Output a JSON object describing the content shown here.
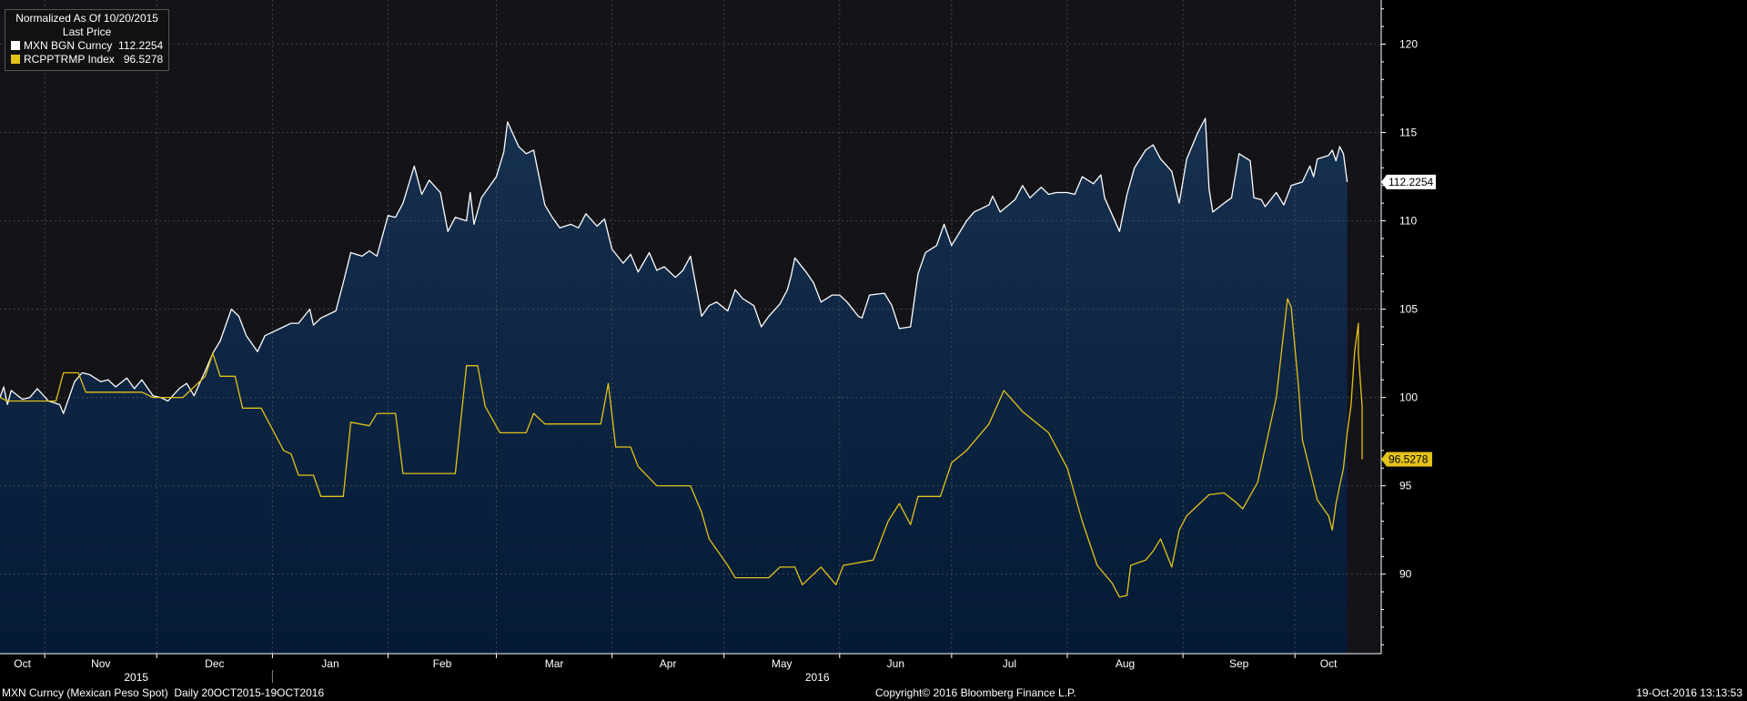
{
  "legend": {
    "header1": "Normalized As Of 10/20/2015",
    "header2": "Last Price",
    "items": [
      {
        "name": "MXN BGN Curncy",
        "value": "112.2254",
        "color": "#ffffff"
      },
      {
        "name": "RCPPTRMP Index",
        "value": "96.5278",
        "color": "#e3c21a"
      }
    ]
  },
  "footer": {
    "left": "MXN Curncy (Mexican Peso Spot)  Daily 20OCT2015-19OCT2016",
    "center": "Copyright© 2016 Bloomberg Finance L.P.",
    "right": "19-Oct-2016 13:13:53"
  },
  "colors": {
    "background": "#000000",
    "plot_top": "#141318",
    "area_top": "#16304f",
    "area_bottom": "#041a35",
    "mxn_line": "#ffffff",
    "rcpp_line": "#e3c21a",
    "grid": "#555555"
  },
  "chart_data": {
    "type": "line",
    "x_range": [
      "2015-10-20",
      "2016-10-19"
    ],
    "months": [
      "Oct",
      "Nov",
      "Dec",
      "Jan",
      "Feb",
      "Mar",
      "Apr",
      "May",
      "Jun",
      "Jul",
      "Aug",
      "Sep",
      "Oct"
    ],
    "years": [
      "2015",
      "2016"
    ],
    "ylim": [
      85.5,
      122.5
    ],
    "yticks": [
      90,
      95,
      100,
      105,
      110,
      115,
      120
    ],
    "grid": true,
    "legend_position": "top-left",
    "series": [
      {
        "name": "MXN BGN Curncy",
        "last": "112.2254",
        "area_fill": true,
        "points": [
          [
            "2015-10-20",
            100.0
          ],
          [
            "2015-10-21",
            100.6
          ],
          [
            "2015-10-22",
            99.6
          ],
          [
            "2015-10-23",
            100.4
          ],
          [
            "2015-10-26",
            99.9
          ],
          [
            "2015-10-28",
            100.0
          ],
          [
            "2015-10-30",
            100.5
          ],
          [
            "2015-11-02",
            99.8
          ],
          [
            "2015-11-05",
            99.6
          ],
          [
            "2015-11-06",
            99.1
          ],
          [
            "2015-11-09",
            100.9
          ],
          [
            "2015-11-11",
            101.4
          ],
          [
            "2015-11-13",
            101.3
          ],
          [
            "2015-11-16",
            100.9
          ],
          [
            "2015-11-18",
            101.0
          ],
          [
            "2015-11-20",
            100.6
          ],
          [
            "2015-11-23",
            101.1
          ],
          [
            "2015-11-25",
            100.5
          ],
          [
            "2015-11-27",
            101.0
          ],
          [
            "2015-11-30",
            100.1
          ],
          [
            "2015-12-02",
            100.0
          ],
          [
            "2015-12-04",
            99.8
          ],
          [
            "2015-12-07",
            100.5
          ],
          [
            "2015-12-09",
            100.8
          ],
          [
            "2015-12-11",
            100.1
          ],
          [
            "2015-12-14",
            101.5
          ],
          [
            "2015-12-16",
            102.5
          ],
          [
            "2015-12-18",
            103.2
          ],
          [
            "2015-12-21",
            105.0
          ],
          [
            "2015-12-23",
            104.6
          ],
          [
            "2015-12-25",
            103.5
          ],
          [
            "2015-12-28",
            102.6
          ],
          [
            "2015-12-30",
            103.5
          ],
          [
            "2016-01-04",
            104.0
          ],
          [
            "2016-01-06",
            104.2
          ],
          [
            "2016-01-08",
            104.2
          ],
          [
            "2016-01-11",
            105.0
          ],
          [
            "2016-01-12",
            104.1
          ],
          [
            "2016-01-14",
            104.5
          ],
          [
            "2016-01-18",
            104.9
          ],
          [
            "2016-01-20",
            106.5
          ],
          [
            "2016-01-22",
            108.2
          ],
          [
            "2016-01-25",
            108.0
          ],
          [
            "2016-01-27",
            108.3
          ],
          [
            "2016-01-29",
            108.0
          ],
          [
            "2016-02-01",
            110.3
          ],
          [
            "2016-02-03",
            110.2
          ],
          [
            "2016-02-05",
            111.0
          ],
          [
            "2016-02-08",
            113.1
          ],
          [
            "2016-02-10",
            111.5
          ],
          [
            "2016-02-12",
            112.3
          ],
          [
            "2016-02-15",
            111.6
          ],
          [
            "2016-02-17",
            109.4
          ],
          [
            "2016-02-19",
            110.2
          ],
          [
            "2016-02-22",
            110.0
          ],
          [
            "2016-02-23",
            111.6
          ],
          [
            "2016-02-24",
            109.8
          ],
          [
            "2016-02-26",
            111.3
          ],
          [
            "2016-03-01",
            112.5
          ],
          [
            "2016-03-03",
            113.9
          ],
          [
            "2016-03-04",
            115.6
          ],
          [
            "2016-03-07",
            114.2
          ],
          [
            "2016-03-09",
            113.8
          ],
          [
            "2016-03-11",
            114.0
          ],
          [
            "2016-03-14",
            110.9
          ],
          [
            "2016-03-16",
            110.2
          ],
          [
            "2016-03-18",
            109.6
          ],
          [
            "2016-03-21",
            109.8
          ],
          [
            "2016-03-23",
            109.6
          ],
          [
            "2016-03-25",
            110.4
          ],
          [
            "2016-03-28",
            109.7
          ],
          [
            "2016-03-30",
            110.1
          ],
          [
            "2016-04-01",
            108.4
          ],
          [
            "2016-04-04",
            107.6
          ],
          [
            "2016-04-06",
            108.1
          ],
          [
            "2016-04-08",
            107.1
          ],
          [
            "2016-04-11",
            108.2
          ],
          [
            "2016-04-13",
            107.2
          ],
          [
            "2016-04-15",
            107.4
          ],
          [
            "2016-04-18",
            106.8
          ],
          [
            "2016-04-20",
            107.2
          ],
          [
            "2016-04-22",
            108.0
          ],
          [
            "2016-04-25",
            104.6
          ],
          [
            "2016-04-27",
            105.2
          ],
          [
            "2016-04-29",
            105.4
          ],
          [
            "2016-05-02",
            104.9
          ],
          [
            "2016-05-04",
            106.1
          ],
          [
            "2016-05-06",
            105.6
          ],
          [
            "2016-05-09",
            105.2
          ],
          [
            "2016-05-11",
            104.0
          ],
          [
            "2016-05-13",
            104.6
          ],
          [
            "2016-05-16",
            105.3
          ],
          [
            "2016-05-18",
            106.1
          ],
          [
            "2016-05-19",
            106.9
          ],
          [
            "2016-05-20",
            107.9
          ],
          [
            "2016-05-23",
            107.1
          ],
          [
            "2016-05-25",
            106.5
          ],
          [
            "2016-05-27",
            105.4
          ],
          [
            "2016-05-30",
            105.8
          ],
          [
            "2016-06-01",
            105.8
          ],
          [
            "2016-06-03",
            105.4
          ],
          [
            "2016-06-06",
            104.6
          ],
          [
            "2016-06-07",
            104.5
          ],
          [
            "2016-06-09",
            105.8
          ],
          [
            "2016-06-13",
            105.9
          ],
          [
            "2016-06-15",
            105.2
          ],
          [
            "2016-06-17",
            103.9
          ],
          [
            "2016-06-20",
            104.0
          ],
          [
            "2016-06-22",
            107.0
          ],
          [
            "2016-06-24",
            108.2
          ],
          [
            "2016-06-27",
            108.6
          ],
          [
            "2016-06-29",
            109.8
          ],
          [
            "2016-07-01",
            108.6
          ],
          [
            "2016-07-05",
            110.0
          ],
          [
            "2016-07-07",
            110.5
          ],
          [
            "2016-07-11",
            110.9
          ],
          [
            "2016-07-12",
            111.4
          ],
          [
            "2016-07-14",
            110.5
          ],
          [
            "2016-07-18",
            111.2
          ],
          [
            "2016-07-20",
            112.0
          ],
          [
            "2016-07-22",
            111.3
          ],
          [
            "2016-07-25",
            111.9
          ],
          [
            "2016-07-27",
            111.5
          ],
          [
            "2016-07-29",
            111.6
          ],
          [
            "2016-08-01",
            111.6
          ],
          [
            "2016-08-03",
            111.5
          ],
          [
            "2016-08-05",
            112.5
          ],
          [
            "2016-08-08",
            112.1
          ],
          [
            "2016-08-10",
            112.6
          ],
          [
            "2016-08-11",
            111.3
          ],
          [
            "2016-08-15",
            109.4
          ],
          [
            "2016-08-17",
            111.5
          ],
          [
            "2016-08-19",
            113.0
          ],
          [
            "2016-08-22",
            114.0
          ],
          [
            "2016-08-24",
            114.3
          ],
          [
            "2016-08-26",
            113.5
          ],
          [
            "2016-08-29",
            112.8
          ],
          [
            "2016-08-31",
            111.0
          ],
          [
            "2016-09-02",
            113.5
          ],
          [
            "2016-09-05",
            115.0
          ],
          [
            "2016-09-07",
            115.8
          ],
          [
            "2016-09-08",
            111.8
          ],
          [
            "2016-09-09",
            110.5
          ],
          [
            "2016-09-12",
            111.0
          ],
          [
            "2016-09-14",
            111.3
          ],
          [
            "2016-09-16",
            113.8
          ],
          [
            "2016-09-19",
            113.4
          ],
          [
            "2016-09-20",
            111.3
          ],
          [
            "2016-09-22",
            111.2
          ],
          [
            "2016-09-23",
            110.8
          ],
          [
            "2016-09-26",
            111.6
          ],
          [
            "2016-09-28",
            110.9
          ],
          [
            "2016-09-30",
            112.0
          ],
          [
            "2016-10-03",
            112.2
          ],
          [
            "2016-10-05",
            113.1
          ],
          [
            "2016-10-06",
            112.5
          ],
          [
            "2016-10-07",
            113.5
          ],
          [
            "2016-10-10",
            113.7
          ],
          [
            "2016-10-11",
            114.0
          ],
          [
            "2016-10-12",
            113.4
          ],
          [
            "2016-10-13",
            114.2
          ],
          [
            "2016-10-14",
            113.8
          ],
          [
            "2016-10-15",
            112.2
          ]
        ]
      },
      {
        "name": "RCPPTRMP Index",
        "last": "96.5278",
        "area_fill": false,
        "points": [
          [
            "2015-10-20",
            100.0
          ],
          [
            "2015-10-22",
            99.8
          ],
          [
            "2015-11-04",
            99.8
          ],
          [
            "2015-11-06",
            101.4
          ],
          [
            "2015-11-10",
            101.4
          ],
          [
            "2015-11-12",
            100.3
          ],
          [
            "2015-11-27",
            100.3
          ],
          [
            "2015-11-30",
            100.0
          ],
          [
            "2015-12-08",
            100.0
          ],
          [
            "2015-12-10",
            100.4
          ],
          [
            "2015-12-14",
            101.2
          ],
          [
            "2015-12-16",
            102.5
          ],
          [
            "2015-12-18",
            101.2
          ],
          [
            "2015-12-22",
            101.2
          ],
          [
            "2015-12-24",
            99.4
          ],
          [
            "2015-12-29",
            99.4
          ],
          [
            "2016-01-04",
            97.0
          ],
          [
            "2016-01-06",
            96.8
          ],
          [
            "2016-01-08",
            95.6
          ],
          [
            "2016-01-12",
            95.6
          ],
          [
            "2016-01-14",
            94.4
          ],
          [
            "2016-01-20",
            94.4
          ],
          [
            "2016-01-22",
            98.6
          ],
          [
            "2016-01-27",
            98.4
          ],
          [
            "2016-01-29",
            99.1
          ],
          [
            "2016-02-03",
            99.1
          ],
          [
            "2016-02-05",
            95.7
          ],
          [
            "2016-02-19",
            95.7
          ],
          [
            "2016-02-22",
            101.8
          ],
          [
            "2016-02-25",
            101.8
          ],
          [
            "2016-02-27",
            99.5
          ],
          [
            "2016-03-02",
            98.0
          ],
          [
            "2016-03-09",
            98.0
          ],
          [
            "2016-03-11",
            99.1
          ],
          [
            "2016-03-14",
            98.5
          ],
          [
            "2016-03-29",
            98.5
          ],
          [
            "2016-03-31",
            100.8
          ],
          [
            "2016-04-02",
            97.2
          ],
          [
            "2016-04-06",
            97.2
          ],
          [
            "2016-04-08",
            96.1
          ],
          [
            "2016-04-13",
            95.0
          ],
          [
            "2016-04-22",
            95.0
          ],
          [
            "2016-04-25",
            93.5
          ],
          [
            "2016-04-27",
            92.0
          ],
          [
            "2016-05-02",
            90.5
          ],
          [
            "2016-05-04",
            89.8
          ],
          [
            "2016-05-13",
            89.8
          ],
          [
            "2016-05-16",
            90.4
          ],
          [
            "2016-05-20",
            90.4
          ],
          [
            "2016-05-22",
            89.4
          ],
          [
            "2016-05-27",
            90.4
          ],
          [
            "2016-05-31",
            89.4
          ],
          [
            "2016-06-02",
            90.5
          ],
          [
            "2016-06-10",
            90.8
          ],
          [
            "2016-06-14",
            93.0
          ],
          [
            "2016-06-17",
            94.0
          ],
          [
            "2016-06-20",
            92.8
          ],
          [
            "2016-06-22",
            94.4
          ],
          [
            "2016-06-28",
            94.4
          ],
          [
            "2016-07-01",
            96.3
          ],
          [
            "2016-07-05",
            97.0
          ],
          [
            "2016-07-11",
            98.5
          ],
          [
            "2016-07-15",
            100.4
          ],
          [
            "2016-07-20",
            99.2
          ],
          [
            "2016-07-27",
            98.0
          ],
          [
            "2016-08-01",
            96.0
          ],
          [
            "2016-08-05",
            93.0
          ],
          [
            "2016-08-09",
            90.5
          ],
          [
            "2016-08-13",
            89.5
          ],
          [
            "2016-08-15",
            88.7
          ],
          [
            "2016-08-17",
            88.8
          ],
          [
            "2016-08-18",
            90.5
          ],
          [
            "2016-08-22",
            90.8
          ],
          [
            "2016-08-24",
            91.3
          ],
          [
            "2016-08-26",
            92.0
          ],
          [
            "2016-08-29",
            90.4
          ],
          [
            "2016-08-31",
            92.5
          ],
          [
            "2016-09-02",
            93.3
          ],
          [
            "2016-09-08",
            94.5
          ],
          [
            "2016-09-12",
            94.6
          ],
          [
            "2016-09-15",
            94.1
          ],
          [
            "2016-09-17",
            93.7
          ],
          [
            "2016-09-21",
            95.2
          ],
          [
            "2016-09-26",
            100.0
          ],
          [
            "2016-09-29",
            105.6
          ],
          [
            "2016-09-30",
            105.1
          ],
          [
            "2016-10-02",
            100.5
          ],
          [
            "2016-10-03",
            97.6
          ],
          [
            "2016-10-07",
            94.2
          ],
          [
            "2016-10-10",
            93.3
          ],
          [
            "2016-10-11",
            92.5
          ],
          [
            "2016-10-12",
            94.0
          ],
          [
            "2016-10-13",
            95.0
          ],
          [
            "2016-10-14",
            96.0
          ],
          [
            "2016-10-15",
            98.0
          ],
          [
            "2016-10-16",
            99.5
          ],
          [
            "2016-10-17",
            102.6
          ],
          [
            "2016-10-18",
            104.2
          ],
          [
            "2016-10-18",
            102.5
          ],
          [
            "2016-10-19",
            99.5
          ],
          [
            "2016-10-19",
            96.5
          ]
        ]
      }
    ]
  }
}
